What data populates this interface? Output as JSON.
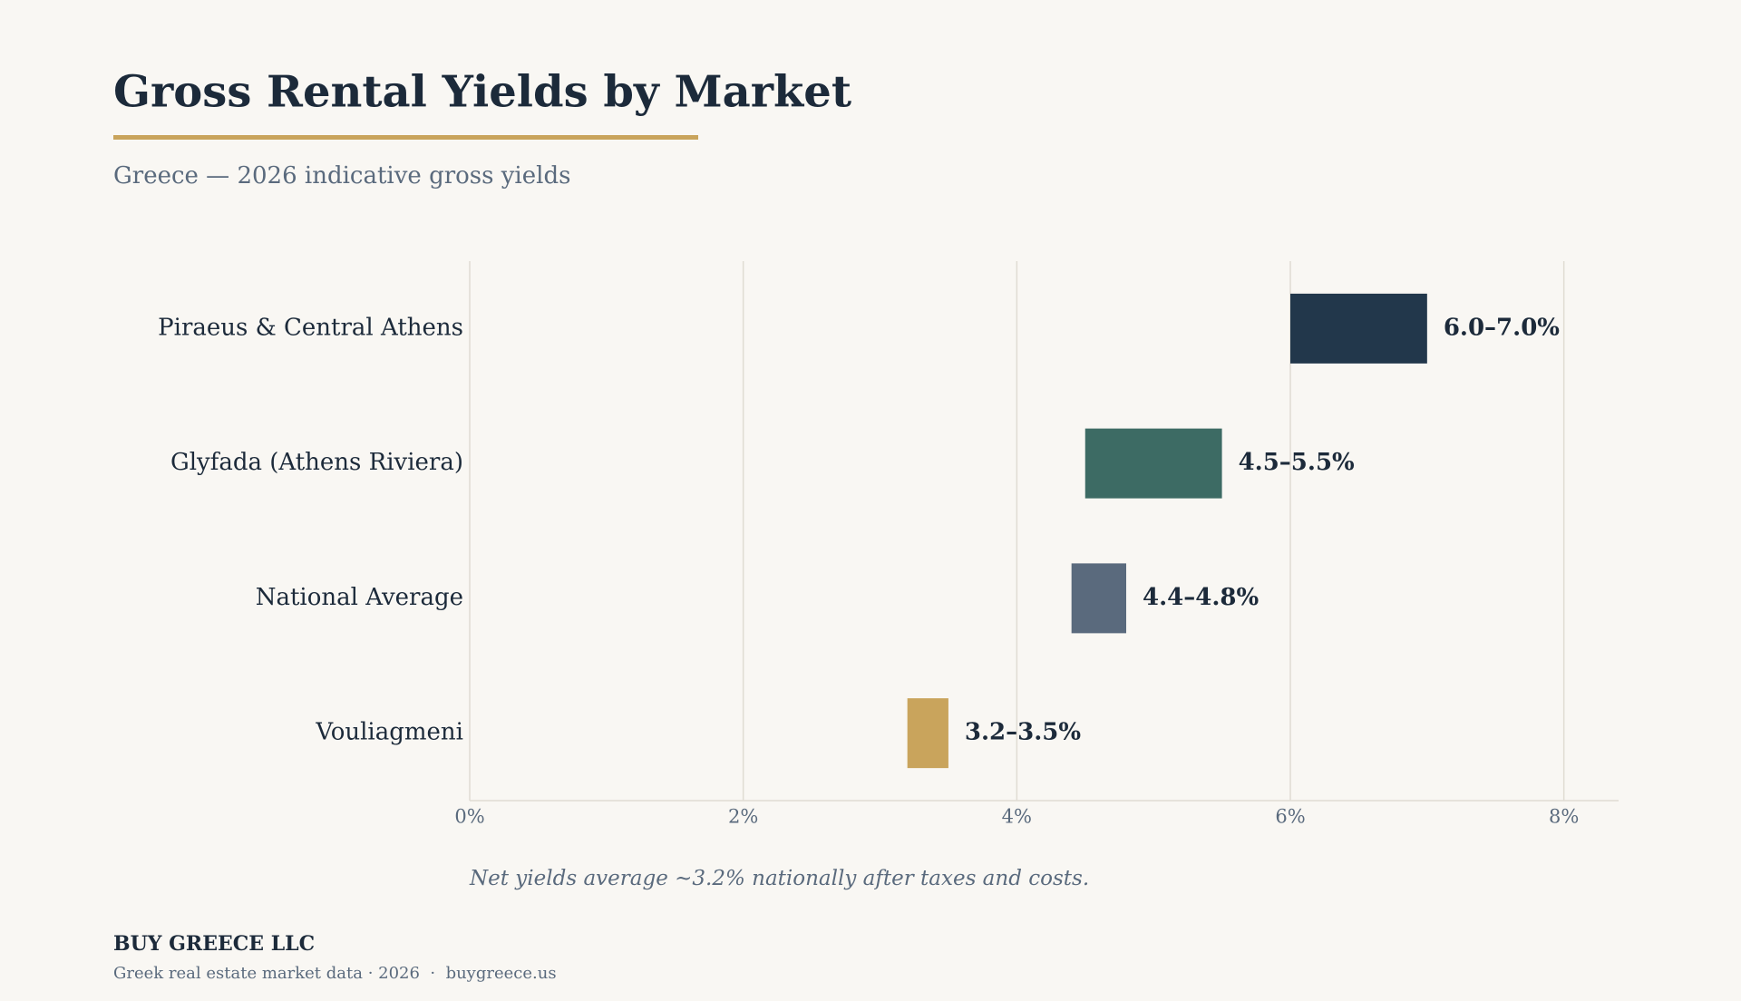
{
  "chart_data": {
    "type": "range-bar",
    "title": "Gross Rental Yields by Market",
    "subtitle": "Greece — 2026 indicative gross yields",
    "categories": [
      "Piraeus & Central Athens",
      "Glyfada (Athens Riviera)",
      "National Average",
      "Vouliagmeni"
    ],
    "low": [
      6.0,
      4.5,
      4.4,
      3.2
    ],
    "high": [
      7.0,
      5.5,
      4.8,
      3.5
    ],
    "value_labels": [
      "6.0–7.0%",
      "4.5–5.5%",
      "4.4–4.8%",
      "3.2–3.5%"
    ],
    "colors": [
      "#22374b",
      "#3d6b64",
      "#5a6a7d",
      "#c9a45c"
    ],
    "xlim": [
      0,
      8.4
    ],
    "xticks": [
      {
        "value": 0,
        "label": "0%"
      },
      {
        "value": 2,
        "label": "2%"
      },
      {
        "value": 4,
        "label": "4%"
      },
      {
        "value": 6,
        "label": "6%"
      },
      {
        "value": 8,
        "label": "8%"
      }
    ],
    "grid": true,
    "note": "Net yields average ~3.2% nationally after taxes and costs."
  },
  "footer": {
    "company": "BUY GREECE LLC",
    "tagline": "Greek real estate market data · 2026  ·  buygreece.us"
  }
}
